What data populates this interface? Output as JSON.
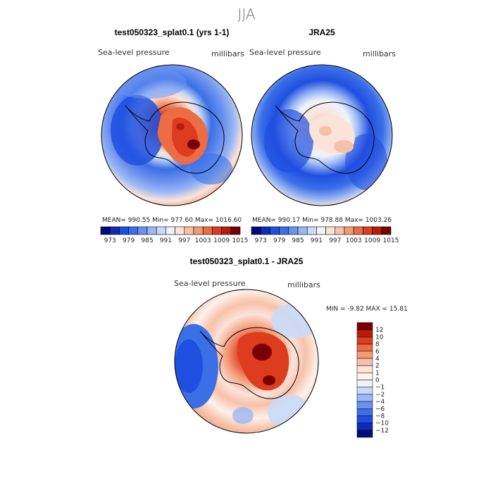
{
  "chart_data": {
    "type": "heatmap",
    "title": "JJA",
    "panels": [
      {
        "id": "model",
        "title": "test050323_splat0.1 (yrs 1-1)",
        "variable": "Sea-level pressure",
        "units": "millibars",
        "stats": "MEAN= 990.55   Min= 977.60   Max= 1016.60",
        "mean": 990.55,
        "min": 977.6,
        "max": 1016.6,
        "colorbar": {
          "orientation": "horizontal",
          "tick_labels": [
            "973",
            "979",
            "985",
            "991",
            "997",
            "1003",
            "1009",
            "1015"
          ],
          "colors": [
            "#000a7a",
            "#0b2bb8",
            "#1f4fe0",
            "#3b6fe8",
            "#6a92ee",
            "#9bb8f4",
            "#c9daf8",
            "#eef3fc",
            "#fbe3d9",
            "#f7c1a8",
            "#f39a77",
            "#ec6c44",
            "#dd3c1e",
            "#b71c0c",
            "#7a0000"
          ]
        }
      },
      {
        "id": "obs",
        "title": "JRA25",
        "variable": "Sea-level pressure",
        "units": "millibars",
        "stats": "MEAN= 990.17   Min= 978.88   Max= 1003.26",
        "mean": 990.17,
        "min": 978.88,
        "max": 1003.26,
        "colorbar": {
          "orientation": "horizontal",
          "tick_labels": [
            "973",
            "979",
            "985",
            "991",
            "997",
            "1003",
            "1009",
            "1015"
          ],
          "colors": [
            "#000a7a",
            "#0b2bb8",
            "#1f4fe0",
            "#3b6fe8",
            "#6a92ee",
            "#9bb8f4",
            "#c9daf8",
            "#eef3fc",
            "#fbe3d9",
            "#f7c1a8",
            "#f39a77",
            "#ec6c44",
            "#dd3c1e",
            "#b71c0c",
            "#7a0000"
          ]
        }
      },
      {
        "id": "diff",
        "title": "test050323_splat0.1 - JRA25",
        "variable": "Sea-level pressure",
        "units": "millibars",
        "stats": "MIN =   -9.82  MAX =   15.81",
        "min": -9.82,
        "max": 15.81,
        "colorbar": {
          "orientation": "vertical",
          "tick_labels": [
            "12",
            "10",
            "8",
            "6",
            "4",
            "2",
            "1",
            "0",
            "−1",
            "−2",
            "−4",
            "−6",
            "−8",
            "−10",
            "−12"
          ],
          "colors": [
            "#7a0000",
            "#b71c0c",
            "#dd3c1e",
            "#ec6c44",
            "#f39a77",
            "#f7c1a8",
            "#fbe3d9",
            "#fdf2ec",
            "#eef3fc",
            "#c9daf8",
            "#9bb8f4",
            "#6a92ee",
            "#3b6fe8",
            "#1f4fe0",
            "#0b2bb8",
            "#000a7a"
          ]
        }
      }
    ]
  }
}
